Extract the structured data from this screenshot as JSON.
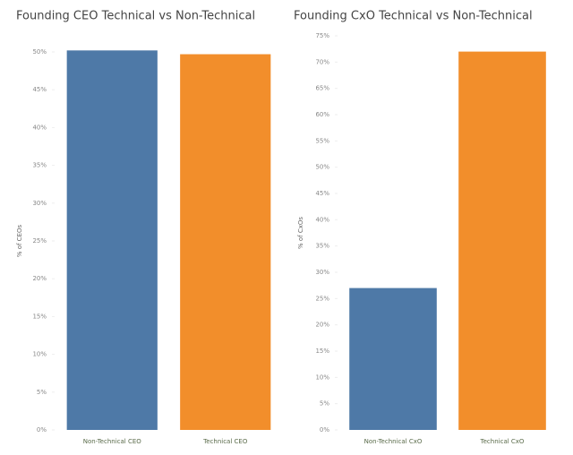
{
  "chart_data": [
    {
      "type": "bar",
      "title": "Founding CEO Technical vs Non-Technical",
      "y_label": "% of CEOs",
      "categories": [
        "Non-Technical CEO",
        "Technical CEO"
      ],
      "values": [
        50.2,
        49.7
      ],
      "colors": [
        "#4e79a7",
        "#f28e2b"
      ],
      "ylim": [
        0,
        50
      ],
      "yticks": [
        {
          "value": 0,
          "label": "0%"
        },
        {
          "value": 5,
          "label": "5%"
        },
        {
          "value": 10,
          "label": "10%"
        },
        {
          "value": 15,
          "label": "15%"
        },
        {
          "value": 20,
          "label": "20%"
        },
        {
          "value": 25,
          "label": "25%"
        },
        {
          "value": 30,
          "label": "30%"
        },
        {
          "value": 35,
          "label": "35%"
        },
        {
          "value": 40,
          "label": "40%"
        },
        {
          "value": 45,
          "label": "45%"
        },
        {
          "value": 50,
          "label": "50%"
        }
      ]
    },
    {
      "type": "bar",
      "title": "Founding CxO Technical vs Non-Technical",
      "y_label": "% of CxOs",
      "categories": [
        "Non-Technical CxO",
        "Technical CxO"
      ],
      "values": [
        27,
        72
      ],
      "colors": [
        "#4e79a7",
        "#f28e2b"
      ],
      "ylim": [
        0,
        75
      ],
      "yticks": [
        {
          "value": 0,
          "label": "0%"
        },
        {
          "value": 5,
          "label": "5%"
        },
        {
          "value": 10,
          "label": "10%"
        },
        {
          "value": 15,
          "label": "15%"
        },
        {
          "value": 20,
          "label": "20%"
        },
        {
          "value": 25,
          "label": "25%"
        },
        {
          "value": 30,
          "label": "30%"
        },
        {
          "value": 35,
          "label": "35%"
        },
        {
          "value": 40,
          "label": "40%"
        },
        {
          "value": 45,
          "label": "45%"
        },
        {
          "value": 50,
          "label": "50%"
        },
        {
          "value": 55,
          "label": "55%"
        },
        {
          "value": 60,
          "label": "60%"
        },
        {
          "value": 65,
          "label": "65%"
        },
        {
          "value": 70,
          "label": "70%"
        },
        {
          "value": 75,
          "label": "75%"
        }
      ]
    }
  ]
}
